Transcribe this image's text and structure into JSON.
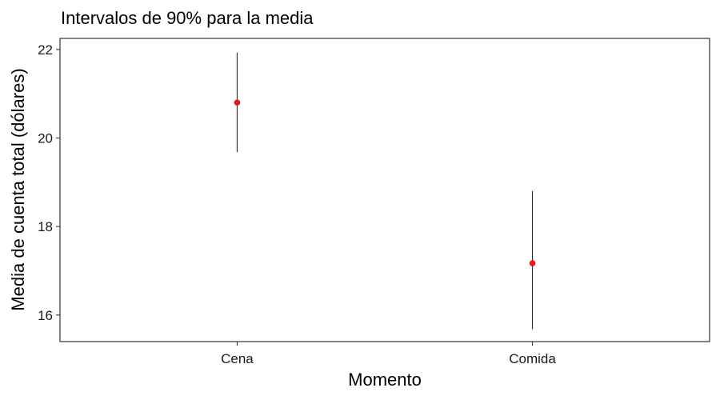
{
  "chart_data": {
    "type": "errorbar",
    "title": "Intervalos de 90% para la media",
    "xlabel": "Momento",
    "ylabel": "Media de cuenta total (dólares)",
    "categories": [
      "Cena",
      "Comida"
    ],
    "means": [
      20.8,
      17.17
    ],
    "lower": [
      19.68,
      15.68
    ],
    "upper": [
      21.93,
      18.8
    ],
    "ylim": [
      15.4,
      22.25
    ],
    "yticks": [
      16,
      18,
      20,
      22
    ],
    "ytick_labels": [
      "16",
      "18",
      "20",
      "22"
    ],
    "grid": false,
    "point_color": "#e41a1c",
    "bar_color": "#333333"
  }
}
